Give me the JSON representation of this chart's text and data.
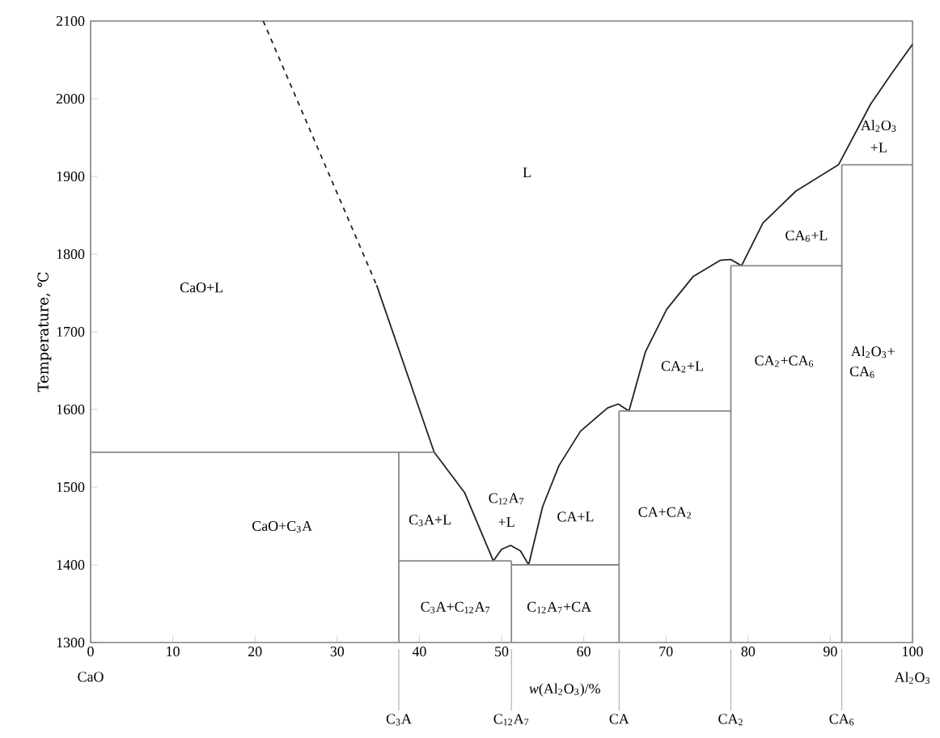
{
  "chart_data": {
    "type": "line",
    "xlabel": "*w*(Al$_{2}$O$_{3}$)/%",
    "ylabel": "Temperature, ℃",
    "xlim": [
      0,
      100
    ],
    "ylim": [
      1300,
      2100
    ],
    "xticks": [
      0,
      10,
      20,
      30,
      40,
      50,
      60,
      70,
      80,
      90,
      100
    ],
    "yticks": [
      1300,
      1400,
      1500,
      1600,
      1700,
      1800,
      1900,
      2000,
      2100
    ],
    "series": [
      {
        "color": "#222222",
        "line_style": "dashed",
        "x": [
          21.0,
          34.8
        ],
        "values": [
          2100,
          1760
        ]
      },
      {
        "color": "#222222",
        "line_style": "solid",
        "x": [
          34.8,
          41.8,
          45.5,
          49.0
        ],
        "values": [
          1760,
          1545,
          1493,
          1405
        ]
      },
      {
        "color": "#222222",
        "line_style": "solid",
        "x": [
          49.0,
          50.0,
          51.1,
          52.3,
          53.3
        ],
        "values": [
          1405,
          1420,
          1425,
          1418,
          1400
        ]
      },
      {
        "color": "#222222",
        "line_style": "solid",
        "x": [
          53.3,
          55.0,
          57.0,
          59.6,
          62.9,
          64.2,
          65.5
        ],
        "values": [
          1400,
          1475,
          1528,
          1572,
          1602,
          1607,
          1598
        ]
      },
      {
        "color": "#222222",
        "line_style": "solid",
        "x": [
          65.5,
          67.5,
          70.1,
          73.3,
          76.6,
          77.9,
          79.2
        ],
        "values": [
          1598,
          1674,
          1729,
          1771,
          1792,
          1793,
          1785
        ]
      },
      {
        "color": "#222222",
        "line_style": "solid",
        "x": [
          79.2,
          81.8,
          85.8,
          91.0
        ],
        "values": [
          1785,
          1840,
          1881,
          1915
        ]
      },
      {
        "color": "#222222",
        "line_style": "solid",
        "x": [
          91.0,
          94.9,
          97.5,
          100
        ],
        "values": [
          1915,
          1993,
          2033,
          2070
        ]
      },
      {
        "color": "#888888",
        "line_style": "solid",
        "x": [
          0,
          41.8
        ],
        "values": [
          1545,
          1545
        ]
      },
      {
        "color": "#888888",
        "line_style": "solid",
        "x": [
          37.5,
          37.5
        ],
        "values": [
          1545,
          1300
        ]
      },
      {
        "color": "#888888",
        "line_style": "solid",
        "x": [
          37.5,
          51.2
        ],
        "values": [
          1405,
          1405
        ]
      },
      {
        "color": "#888888",
        "line_style": "solid",
        "x": [
          51.2,
          51.2
        ],
        "values": [
          1405,
          1300
        ]
      },
      {
        "color": "#888888",
        "line_style": "solid",
        "x": [
          51.2,
          64.3
        ],
        "values": [
          1400,
          1400
        ]
      },
      {
        "color": "#888888",
        "line_style": "solid",
        "x": [
          64.3,
          64.3
        ],
        "values": [
          1598,
          1300
        ]
      },
      {
        "color": "#888888",
        "line_style": "solid",
        "x": [
          64.3,
          77.9
        ],
        "values": [
          1598,
          1598
        ]
      },
      {
        "color": "#888888",
        "line_style": "solid",
        "x": [
          77.9,
          77.9
        ],
        "values": [
          1785,
          1300
        ]
      },
      {
        "color": "#888888",
        "line_style": "solid",
        "x": [
          77.9,
          91.4
        ],
        "values": [
          1785,
          1785
        ]
      },
      {
        "color": "#888888",
        "line_style": "solid",
        "x": [
          91.4,
          91.4
        ],
        "values": [
          1915,
          1300
        ]
      },
      {
        "color": "#888888",
        "line_style": "solid",
        "x": [
          91.4,
          100
        ],
        "values": [
          1915,
          1915
        ]
      }
    ],
    "annotations": [
      "CaO+L",
      "L",
      "CaO+C$_{3}$A",
      "C$_{3}$A+L",
      "C$_{3}$A+C$_{12}$A$_{7}$",
      "C$_{12}$A$_{7}$",
      "+L",
      "CA+L",
      "C$_{12}$A$_{7}$+CA",
      "CA+CA$_{2}$",
      "CA$_{2}$+L",
      "CA$_{2}$+CA$_{6}$",
      "CA$_{6}$+L",
      "Al$_{2}$O$_{3}$",
      "+L",
      "Al$_{2}$O$_{3}$+",
      "CA$_{6}$",
      "CaO",
      "Al$_{2}$O$_{3}$",
      "C$_{3}$A",
      "C$_{12}$A$_{7}$",
      "CA",
      "CA$_{2}$",
      "CA$_{6}$"
    ]
  }
}
